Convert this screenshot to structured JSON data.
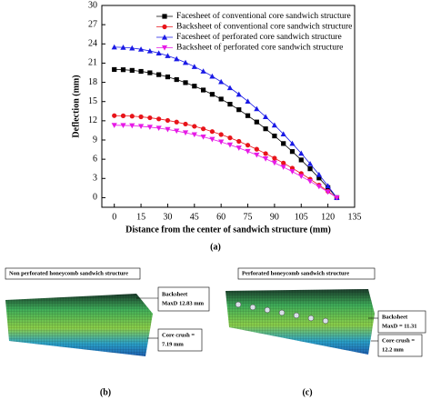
{
  "chart_data": {
    "type": "line",
    "x_label": "Distance from the center of sandwich structure (mm)",
    "y_label": "Deflection (mm)",
    "x": [
      0,
      5,
      10,
      15,
      20,
      25,
      30,
      35,
      40,
      45,
      50,
      55,
      60,
      65,
      70,
      75,
      80,
      85,
      90,
      95,
      100,
      105,
      110,
      115,
      120,
      125
    ],
    "series": [
      {
        "name": "Facesheet of conventional core sandwich structure",
        "color": "#000000",
        "marker": "square",
        "values": [
          20,
          19.97,
          19.87,
          19.71,
          19.49,
          19.2,
          18.85,
          18.43,
          17.95,
          17.41,
          16.8,
          16.13,
          15.39,
          14.59,
          13.73,
          12.8,
          11.81,
          10.75,
          9.63,
          8.45,
          7.2,
          5.89,
          4.51,
          3.07,
          1.57,
          0
        ]
      },
      {
        "name": "Backsheet of conventional core sandwich structure",
        "color": "#e8141a",
        "marker": "circle",
        "values": [
          12.8,
          12.78,
          12.72,
          12.62,
          12.47,
          12.29,
          12.06,
          11.8,
          11.49,
          11.14,
          10.75,
          10.32,
          9.85,
          9.34,
          8.79,
          8.19,
          7.56,
          6.88,
          6.16,
          5.41,
          4.61,
          3.77,
          2.89,
          1.97,
          1.0,
          0
        ]
      },
      {
        "name": "Facesheet of perforated core sandwich structure",
        "color": "#1a1ae6",
        "marker": "triangle",
        "values": [
          23.5,
          23.46,
          23.35,
          23.16,
          22.9,
          22.56,
          22.15,
          21.66,
          21.09,
          20.45,
          19.74,
          18.95,
          18.09,
          17.15,
          16.13,
          15.04,
          13.87,
          12.63,
          11.32,
          9.93,
          8.46,
          6.92,
          5.3,
          3.61,
          1.84,
          0
        ]
      },
      {
        "name": "Backsheet of perforated core sandwich structure",
        "color": "#e61ae6",
        "marker": "triangle-down",
        "values": [
          11.3,
          11.28,
          11.23,
          11.14,
          11.01,
          10.85,
          10.65,
          10.41,
          10.14,
          9.84,
          9.49,
          9.11,
          8.7,
          8.24,
          7.76,
          7.23,
          6.67,
          6.07,
          5.44,
          4.77,
          4.07,
          3.33,
          2.55,
          1.74,
          0.89,
          0
        ]
      }
    ],
    "xlim": [
      -7,
      135
    ],
    "xticks": [
      0,
      15,
      30,
      45,
      60,
      75,
      90,
      105,
      120,
      135
    ],
    "ylim": [
      -1.5,
      30
    ],
    "yticks": [
      0,
      3,
      6,
      9,
      12,
      15,
      18,
      21,
      24,
      27,
      30
    ],
    "legend": "upper right",
    "grid": false
  },
  "panels": {
    "a": {
      "label": "(a)"
    },
    "b": {
      "label": "(b)",
      "title": "Non perforated honeycomb sandwich structure",
      "backsheet": [
        "Backsheet",
        "MaxD 12.83 mm"
      ],
      "core": [
        "Core crush =",
        "7.19 mm"
      ]
    },
    "c": {
      "label": "(c)",
      "title": "Perforated honeycomb sandwich structure",
      "backsheet": [
        "Backsheet",
        "MaxD = 11.31"
      ],
      "core": [
        "Core crush =",
        "12.2 mm"
      ]
    }
  }
}
